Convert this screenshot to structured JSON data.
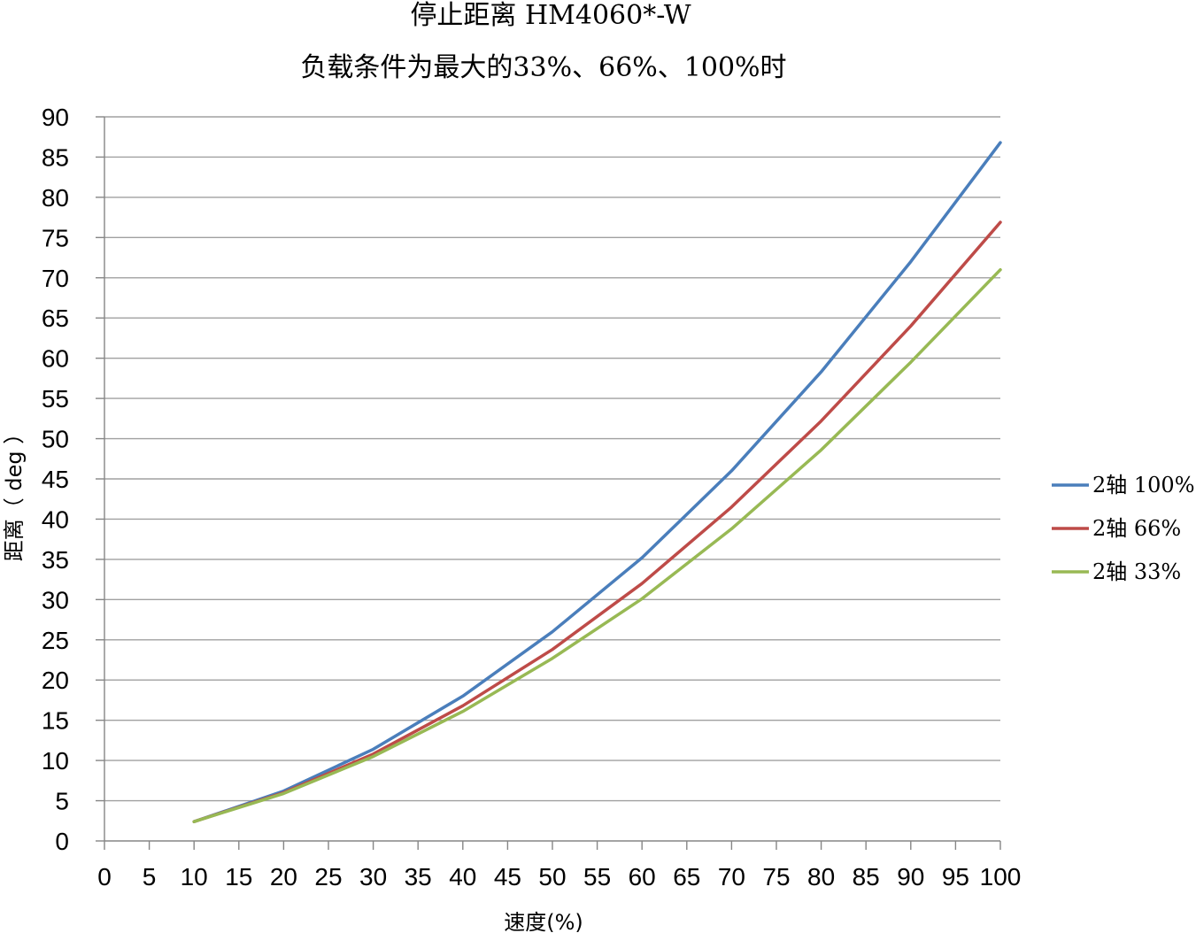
{
  "chart_data": {
    "type": "line",
    "title": "停止距离 HM4060*-W",
    "subtitle": "负载条件为最大的33%、66%、100%时",
    "xlabel": "速度(%)",
    "ylabel": "距离（ deg ）",
    "xlim": [
      0,
      100
    ],
    "ylim": [
      0,
      90
    ],
    "x_ticks": [
      "0",
      "5",
      "10",
      "15",
      "20",
      "25",
      "30",
      "35",
      "40",
      "45",
      "50",
      "55",
      "60",
      "65",
      "70",
      "75",
      "80",
      "85",
      "90",
      "95",
      "100"
    ],
    "y_ticks": [
      "0",
      "5",
      "10",
      "15",
      "20",
      "25",
      "30",
      "35",
      "40",
      "45",
      "50",
      "55",
      "60",
      "65",
      "70",
      "75",
      "80",
      "85",
      "90"
    ],
    "grid": true,
    "legend_position": "right",
    "x": [
      10,
      20,
      30,
      40,
      50,
      60,
      70,
      80,
      90,
      100
    ],
    "series": [
      {
        "name": "2轴 100%",
        "color": "#4a7ebb",
        "values": [
          2.4,
          6.2,
          11.4,
          18.0,
          26.0,
          35.2,
          46.0,
          58.3,
          72.0,
          86.8
        ]
      },
      {
        "name": "2轴 66%",
        "color": "#be4b48",
        "values": [
          2.4,
          6.0,
          10.8,
          16.8,
          23.8,
          32.0,
          41.5,
          52.2,
          64.0,
          76.9
        ]
      },
      {
        "name": "2轴 33%",
        "color": "#98b954",
        "values": [
          2.4,
          5.9,
          10.5,
          16.1,
          22.7,
          30.1,
          38.8,
          48.6,
          59.5,
          71.0
        ]
      }
    ]
  }
}
